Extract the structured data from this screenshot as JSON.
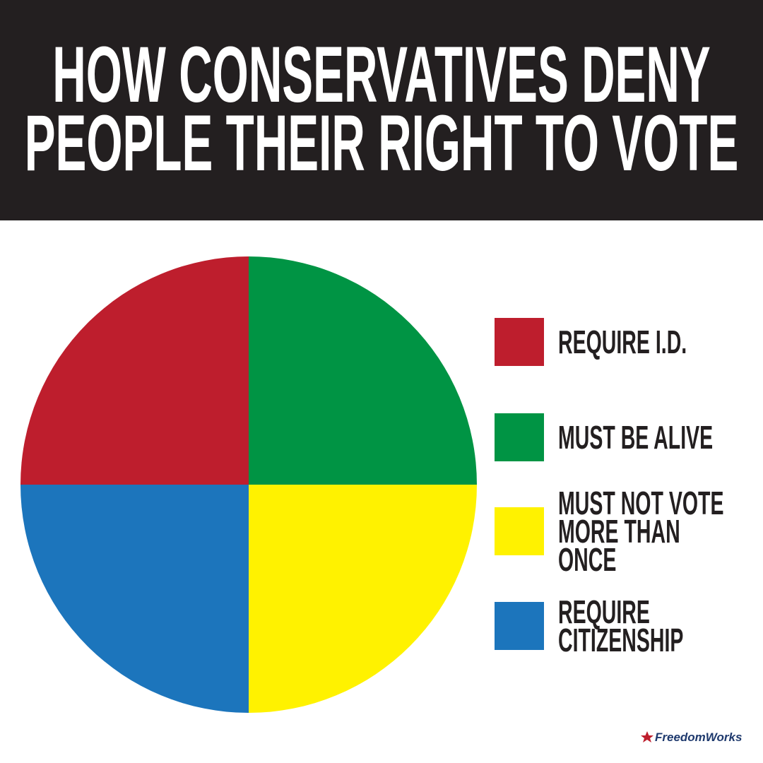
{
  "chart_data": {
    "type": "pie",
    "title": "HOW CONSERVATIVES DENY PEOPLE THEIR RIGHT TO VOTE",
    "categories": [
      "REQUIRE I.D.",
      "MUST BE ALIVE",
      "MUST NOT VOTE MORE THAN ONCE",
      "REQUIRE CITIZENSHIP"
    ],
    "values": [
      25,
      25,
      25,
      25
    ],
    "colors": [
      "#be1e2d",
      "#009444",
      "#fff200",
      "#1c75bc"
    ],
    "legend": "right"
  },
  "footer": "FreedomWorks"
}
